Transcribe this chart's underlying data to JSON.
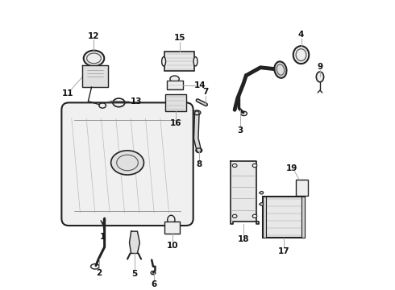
{
  "bg_color": "#ffffff",
  "gray": "#222222",
  "light_gray": "#aaaaaa",
  "fill_light": "#eeeeee",
  "fill_med": "#e0e0e0",
  "label_fs": 7.5,
  "parts_labels": [
    "1",
    "2",
    "3",
    "4",
    "5",
    "6",
    "7",
    "8",
    "9",
    "10",
    "11",
    "12",
    "13",
    "14",
    "15",
    "16",
    "17",
    "18",
    "19"
  ]
}
